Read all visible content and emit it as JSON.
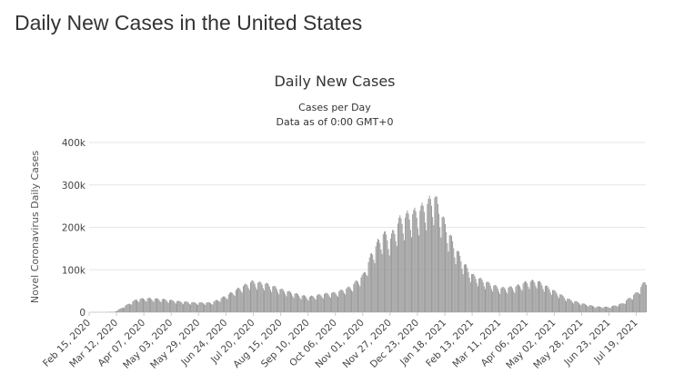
{
  "page": {
    "title": "Daily New Cases in the United States"
  },
  "chart_data": {
    "type": "bar",
    "title": "Daily New Cases",
    "subtitle_lines": [
      "Cases per Day",
      "Data as of 0:00 GMT+0"
    ],
    "ylabel": "Novel Coronavirus Daily Cases",
    "xlabel": "",
    "ylim": [
      0,
      400000
    ],
    "yticks": [
      0,
      100000,
      200000,
      300000,
      400000
    ],
    "ytick_labels": [
      "0",
      "100k",
      "200k",
      "300k",
      "400k"
    ],
    "x_start": "2020-02-15",
    "x_end": "2021-07-28",
    "xticks": [
      "2020-02-15",
      "2020-03-12",
      "2020-04-07",
      "2020-05-03",
      "2020-05-29",
      "2020-06-24",
      "2020-07-20",
      "2020-08-15",
      "2020-09-10",
      "2020-10-06",
      "2020-11-01",
      "2020-11-27",
      "2020-12-23",
      "2021-01-18",
      "2021-02-13",
      "2021-03-11",
      "2021-04-06",
      "2021-05-02",
      "2021-05-28",
      "2021-06-23",
      "2021-07-19"
    ],
    "xtick_labels": [
      "Feb 15, 2020",
      "Mar 12, 2020",
      "Apr 07, 2020",
      "May 03, 2020",
      "May 29, 2020",
      "Jun 24, 2020",
      "Jul 20, 2020",
      "Aug 15, 2020",
      "Sep 10, 2020",
      "Oct 06, 2020",
      "Nov 01, 2020",
      "Nov 27, 2020",
      "Dec 23, 2020",
      "Jan 18, 2021",
      "Feb 13, 2021",
      "Mar 11, 2021",
      "Apr 06, 2021",
      "May 02, 2021",
      "May 28, 2021",
      "Jun 23, 2021",
      "Jul 19, 2021"
    ],
    "grid": true,
    "legend": "none",
    "bar_color": "#999999",
    "series": [
      {
        "dates_sampled": [
          "2020-02-15",
          "2020-03-01",
          "2020-03-10",
          "2020-03-20",
          "2020-03-31",
          "2020-04-10",
          "2020-04-24",
          "2020-05-10",
          "2020-05-25",
          "2020-06-10",
          "2020-06-24",
          "2020-07-06",
          "2020-07-18",
          "2020-08-01",
          "2020-08-15",
          "2020-09-01",
          "2020-09-10",
          "2020-09-25",
          "2020-10-06",
          "2020-10-20",
          "2020-11-01",
          "2020-11-10",
          "2020-11-20",
          "2020-11-27",
          "2020-12-05",
          "2020-12-15",
          "2020-12-23",
          "2021-01-01",
          "2021-01-08",
          "2021-01-18",
          "2021-01-27",
          "2021-02-05",
          "2021-02-13",
          "2021-02-25",
          "2021-03-11",
          "2021-03-25",
          "2021-04-06",
          "2021-04-15",
          "2021-05-02",
          "2021-05-15",
          "2021-05-28",
          "2021-06-10",
          "2021-06-23",
          "2021-07-05",
          "2021-07-19",
          "2021-07-28"
        ],
        "values": [
          0,
          0,
          1000,
          15000,
          30000,
          32000,
          30000,
          25000,
          22000,
          22000,
          38000,
          55000,
          70000,
          65000,
          52000,
          40000,
          35000,
          42000,
          45000,
          58000,
          85000,
          140000,
          180000,
          170000,
          210000,
          225000,
          230000,
          250000,
          265000,
          200000,
          150000,
          110000,
          85000,
          70000,
          55000,
          58000,
          70000,
          72000,
          48000,
          30000,
          20000,
          13000,
          12000,
          20000,
          45000,
          75000
        ]
      }
    ]
  }
}
